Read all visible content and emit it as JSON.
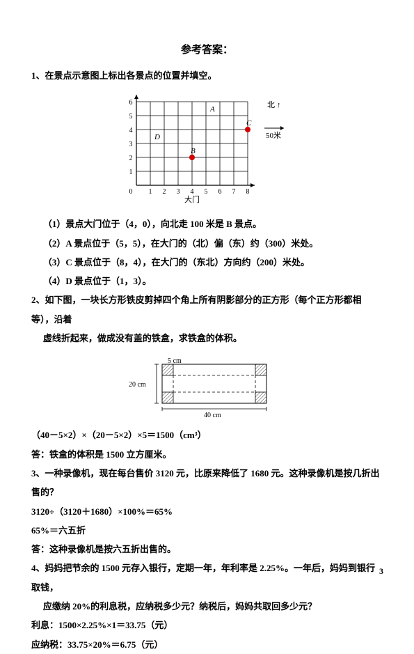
{
  "title": "参考答案：",
  "q1": {
    "prompt": "1、在景点示意图上标出各景点的位置并填空。",
    "chart": {
      "grid": {
        "rows": 6,
        "cols": 8,
        "cell": 20,
        "stroke": "#000000"
      },
      "points": {
        "A": {
          "x": 5,
          "y": 5,
          "label": "A",
          "dot": false
        },
        "B": {
          "x": 4,
          "y": 2,
          "label": "B",
          "dot": true,
          "dot_color": "#d40000"
        },
        "C": {
          "x": 8,
          "y": 4,
          "label": "C",
          "dot": true,
          "dot_color": "#d40000"
        },
        "D": {
          "x": 1,
          "y": 3,
          "label": "D",
          "dot": false
        }
      },
      "gate_label": "大门",
      "x_ticks": [
        "1",
        "2",
        "3",
        "4",
        "5",
        "6",
        "7",
        "8"
      ],
      "y_ticks": [
        "1",
        "2",
        "3",
        "4",
        "5",
        "6"
      ],
      "north_label": "北",
      "north_sub": "↑",
      "scale_label": "50米"
    },
    "a1": "（1）景点大门位于（4，0），向北走 100 米是 B 景点。",
    "a2": "（2）A 景点位于（5，5），在大门的（北）偏（东）约（300）米处。",
    "a3": "（3）C 景点位于（8，4），在大门的（东北）方向约（200）米处。",
    "a4": "（4）D 景点位于（1，3）。"
  },
  "q2": {
    "prompt_a": "2、如下图，一块长方形铁皮剪掉四个角上所有阴影部分的正方形（每个正方形都相等），沿着",
    "prompt_b": "虚线折起来，做成没有盖的铁盒，求铁盒的体积。",
    "fig": {
      "w_label": "40 cm",
      "h_label": "20 cm",
      "cut_label": "5 cm",
      "outer_stroke": "#000000",
      "hatch_fill": "#bfbfbf",
      "dash": "4 3"
    },
    "calc": "（40－5×2）×（20－5×2）×5＝1500（cm³）",
    "ans": "答：铁盒的体积是 1500 立方厘米。"
  },
  "q3": {
    "prompt": "3、一种录像机，现在每台售价 3120 元，比原来降低了 1680 元。这种录像机是按几折出售的？",
    "calc1": "3120÷（3120＋1680）×100%＝65%",
    "calc2": "65%＝六五折",
    "ans": "答：这种录像机是按六五折出售的。"
  },
  "q4": {
    "prompt_a": "4、妈妈把节余的 1500 元存入银行，定期一年，年利率是 2.25%。一年后，妈妈到银行取钱，",
    "prompt_b": "应缴纳 20%的利息税，应纳税多少元？纳税后，妈妈共取回多少元？",
    "calc1": "利息：1500×2.25%×1＝33.75（元）",
    "calc2": "应纳税：33.75×20%＝6.75（元）"
  },
  "page_number": "3"
}
